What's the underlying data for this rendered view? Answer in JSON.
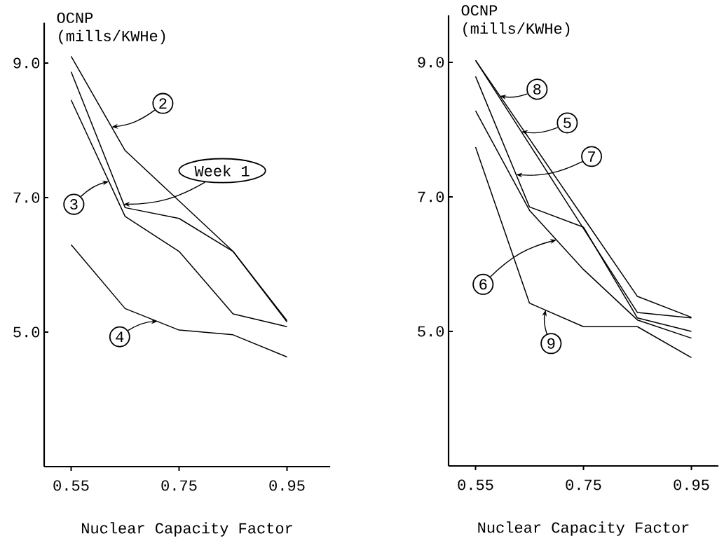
{
  "chart_data": [
    {
      "type": "line",
      "xlabel": "Nuclear Capacity Factor",
      "ylabel": "OCNP (mills/KWHe)",
      "x": [
        0.55,
        0.65,
        0.75,
        0.85,
        0.95
      ],
      "xlim": [
        0.5,
        1.03
      ],
      "ylim": [
        3.0,
        9.6
      ],
      "xticks": [
        0.55,
        0.75,
        0.95
      ],
      "yticks": [
        {
          "value": 5,
          "label": "5.0"
        },
        {
          "value": 7,
          "label": "7.0"
        },
        {
          "value": 9,
          "label": "9.0"
        }
      ],
      "series": [
        {
          "color": "#000000",
          "values": [
            9.1,
            7.7,
            6.95,
            6.2,
            5.15
          ]
        },
        {
          "color": "#000000",
          "values": [
            8.87,
            6.85,
            6.69,
            6.2,
            5.17
          ]
        },
        {
          "color": "#000000",
          "values": [
            8.45,
            6.72,
            6.2,
            5.27,
            5.08
          ]
        },
        {
          "color": "#000000",
          "values": [
            6.3,
            5.35,
            5.03,
            4.96,
            4.63
          ]
        }
      ],
      "annotations": [
        {
          "text": "2",
          "x": 0.625,
          "y": 8.05
        },
        {
          "text": "Week 1",
          "x": 0.647,
          "y": 6.9
        },
        {
          "text": "3",
          "x": 0.62,
          "y": 7.24
        },
        {
          "text": "4",
          "x": 0.71,
          "y": 5.16
        }
      ]
    },
    {
      "type": "line",
      "xlabel": "Nuclear Capacity Factor",
      "ylabel": "OCNP (mills/KWHe)",
      "x": [
        0.55,
        0.65,
        0.75,
        0.85,
        0.95
      ],
      "xlim": [
        0.5,
        1.0
      ],
      "ylim": [
        3.0,
        9.7
      ],
      "xticks": [
        0.55,
        0.75,
        0.95
      ],
      "yticks": [
        {
          "value": 5,
          "label": "5.0"
        },
        {
          "value": 7,
          "label": "7.0"
        },
        {
          "value": 9,
          "label": "9.0"
        }
      ],
      "series": [
        {
          "color": "#000000",
          "values": [
            9.03,
            7.86,
            6.69,
            5.52,
            5.21
          ]
        },
        {
          "color": "#000000",
          "values": [
            9.03,
            7.78,
            6.53,
            5.28,
            5.2
          ]
        },
        {
          "color": "#000000",
          "values": [
            8.79,
            6.85,
            6.55,
            5.2,
            5.0
          ]
        },
        {
          "color": "#000000",
          "values": [
            8.28,
            6.8,
            5.92,
            5.17,
            4.9
          ]
        },
        {
          "color": "#000000",
          "values": [
            7.74,
            5.42,
            5.07,
            5.07,
            4.61
          ]
        }
      ],
      "annotations": [
        {
          "text": "8",
          "x": 0.595,
          "y": 8.5
        },
        {
          "text": "5",
          "x": 0.635,
          "y": 7.97
        },
        {
          "text": "7",
          "x": 0.625,
          "y": 7.33
        },
        {
          "text": "6",
          "x": 0.7,
          "y": 6.36
        },
        {
          "text": "9",
          "x": 0.68,
          "y": 5.32
        }
      ]
    }
  ]
}
